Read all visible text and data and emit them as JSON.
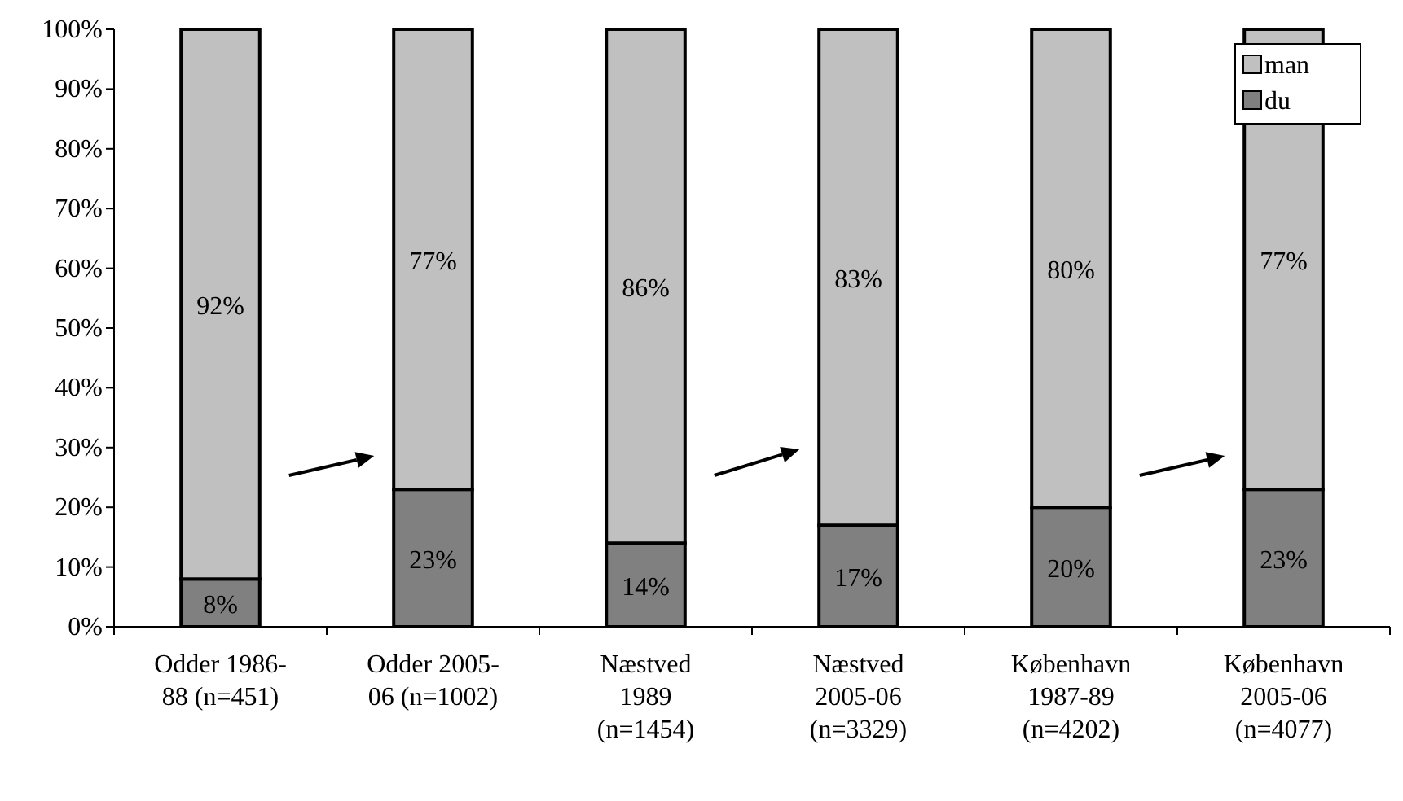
{
  "chart_data": {
    "type": "bar",
    "stacked": true,
    "categories": [
      "Odder 1986-\n88 (n=451)",
      "Odder 2005-\n06 (n=1002)",
      "Næstved\n1989\n(n=1454)",
      "Næstved\n2005-06\n(n=3329)",
      "København\n1987-89\n(n=4202)",
      "København\n2005-06\n(n=4077)"
    ],
    "series": [
      {
        "name": "du",
        "color": "#808080",
        "values": [
          8,
          23,
          14,
          17,
          20,
          23
        ],
        "value_labels": [
          "8%",
          "23%",
          "14%",
          "17%",
          "20%",
          "23%"
        ]
      },
      {
        "name": "man",
        "color": "#c0c0c0",
        "values": [
          92,
          77,
          86,
          83,
          80,
          77
        ],
        "value_labels": [
          "92%",
          "77%",
          "86%",
          "83%",
          "80%",
          "77%"
        ]
      }
    ],
    "ylim": [
      0,
      100
    ],
    "yticks": [
      {
        "value": 0,
        "label": "0%"
      },
      {
        "value": 10,
        "label": "10%"
      },
      {
        "value": 20,
        "label": "20%"
      },
      {
        "value": 30,
        "label": "30%"
      },
      {
        "value": 40,
        "label": "40%"
      },
      {
        "value": 50,
        "label": "50%"
      },
      {
        "value": 60,
        "label": "60%"
      },
      {
        "value": 70,
        "label": "70%"
      },
      {
        "value": 80,
        "label": "80%"
      },
      {
        "value": 90,
        "label": "90%"
      },
      {
        "value": 100,
        "label": "100%"
      }
    ],
    "legend": "top right"
  }
}
